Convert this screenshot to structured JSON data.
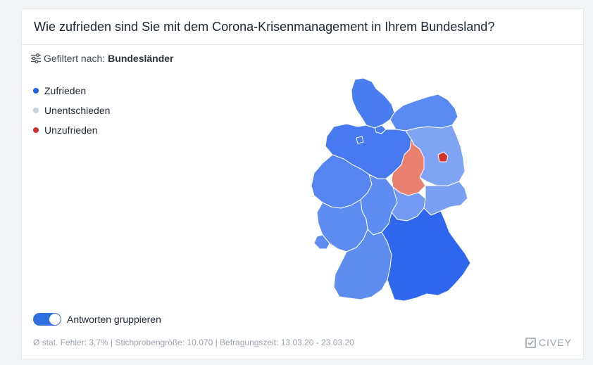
{
  "header": {
    "title": "Wie zufrieden sind Sie mit dem Corona-Krisenmanagement in Ihrem Bundesland?"
  },
  "filter": {
    "icon": "sliders-icon",
    "label": "Gefiltert nach:",
    "value": "Bundesländer"
  },
  "legend": [
    {
      "label": "Zufrieden",
      "color": "#2563eb"
    },
    {
      "label": "Unentschieden",
      "color": "#c9d3de"
    },
    {
      "label": "Unzufrieden",
      "color": "#d0342c"
    }
  ],
  "map": {
    "region": "Deutschland",
    "states": [
      {
        "name": "Schleswig-Holstein",
        "color": "#4a7ef0"
      },
      {
        "name": "Hamburg",
        "color": "#4a7ef0"
      },
      {
        "name": "Mecklenburg-Vorpommern",
        "color": "#5a8bf2"
      },
      {
        "name": "Niedersachsen",
        "color": "#4779f0"
      },
      {
        "name": "Bremen",
        "color": "#4779f0"
      },
      {
        "name": "Brandenburg",
        "color": "#7ea4f3"
      },
      {
        "name": "Berlin",
        "color": "#d0342c"
      },
      {
        "name": "Sachsen-Anhalt",
        "color": "#ea8070"
      },
      {
        "name": "Nordrhein-Westfalen",
        "color": "#5485f1"
      },
      {
        "name": "Hessen",
        "color": "#5d8cf2"
      },
      {
        "name": "Thüringen",
        "color": "#739bf4"
      },
      {
        "name": "Sachsen",
        "color": "#7aa0f4"
      },
      {
        "name": "Rheinland-Pfalz",
        "color": "#5d8cf2"
      },
      {
        "name": "Saarland",
        "color": "#5d8cf2"
      },
      {
        "name": "Baden-Württemberg",
        "color": "#5e8def"
      },
      {
        "name": "Bayern",
        "color": "#2f66ee"
      }
    ]
  },
  "toggle": {
    "label": "Antworten gruppieren",
    "on": true
  },
  "footnote": "Ø stat. Fehler: 3,7% | Stichprobengröße: 10.070 | Befragungszeit: 13.03.20 - 23.03.20",
  "brand": {
    "name": "CIVEY",
    "icon": "civey-logo-icon"
  }
}
